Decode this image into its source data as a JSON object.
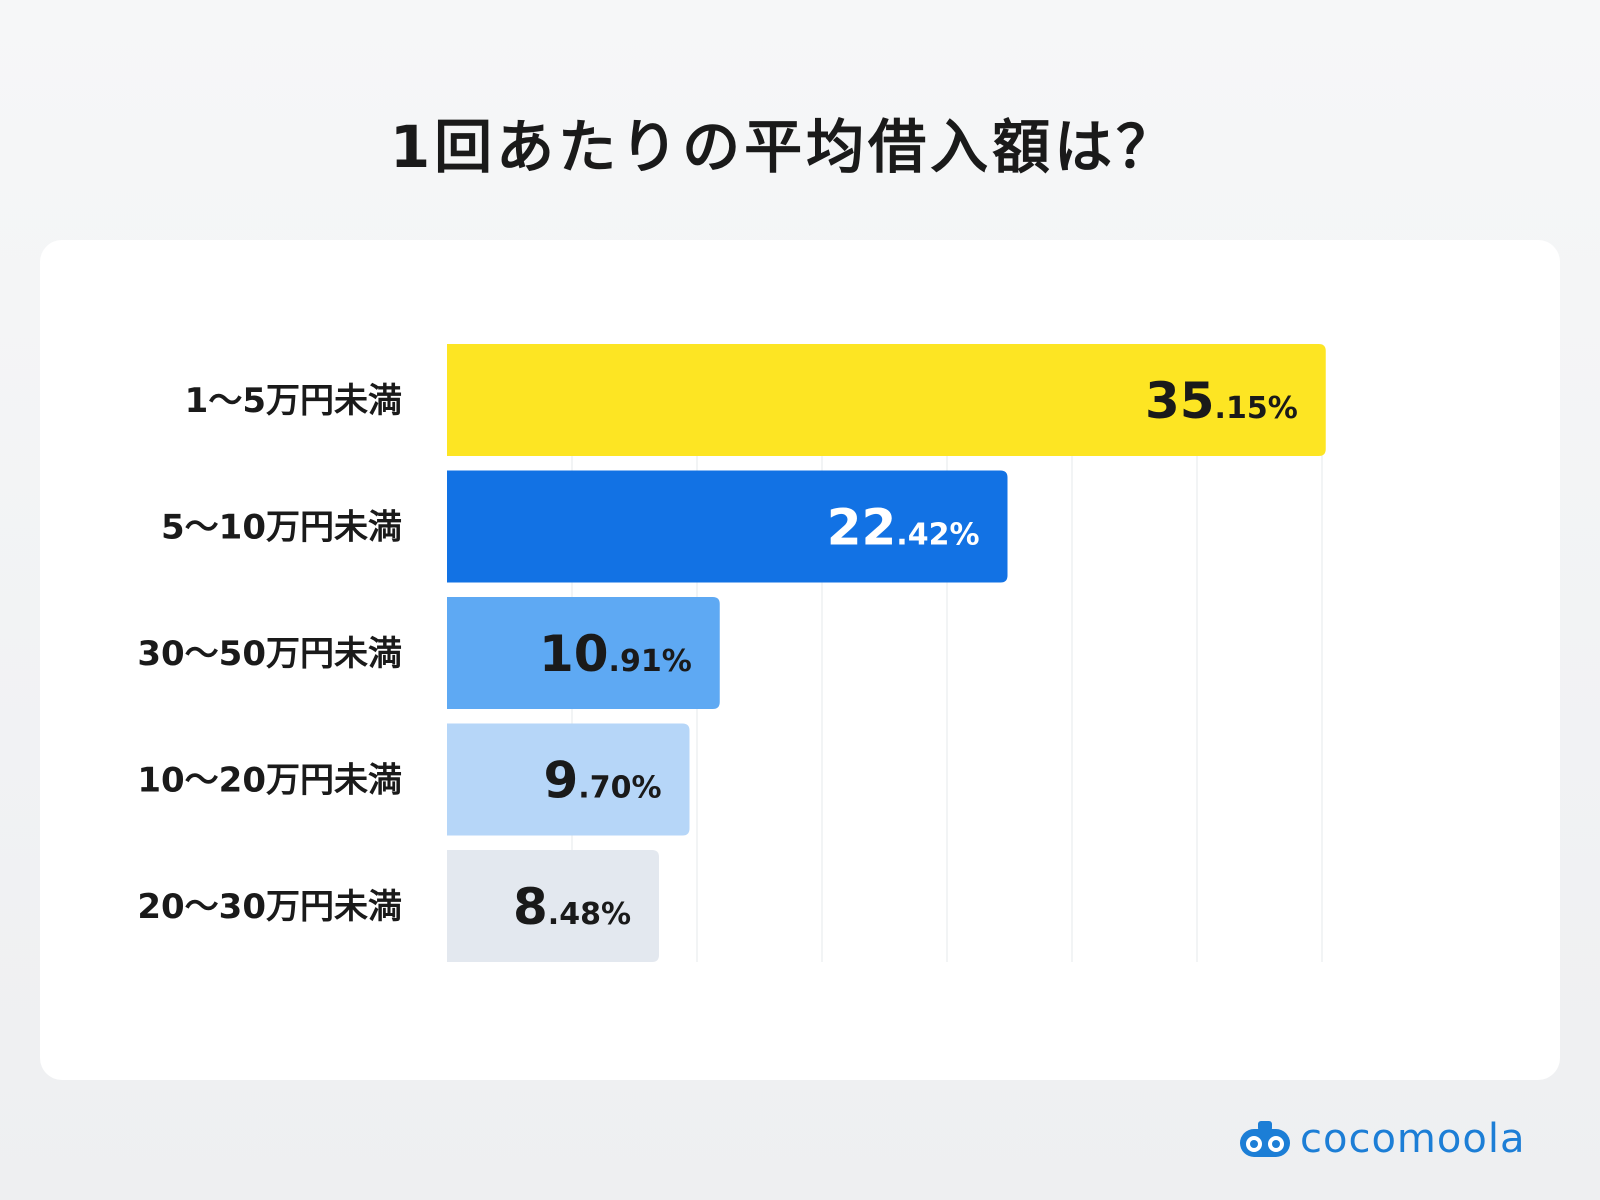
{
  "title": "1回あたりの平均借入額は？",
  "brand": {
    "name": "cocomoola",
    "color": "#1c7ed6",
    "icon": "binoculars-icon"
  },
  "chart_data": {
    "type": "bar",
    "orientation": "horizontal",
    "title": "1回あたりの平均借入額は？",
    "xlabel": "",
    "ylabel": "",
    "xlim": [
      0,
      42
    ],
    "grid": true,
    "unit": "%",
    "categories": [
      "1〜5万円未満",
      "5〜10万円未満",
      "30〜50万円未満",
      "10〜20万円未満",
      "20〜30万円未満"
    ],
    "values": [
      35.15,
      22.42,
      10.91,
      9.7,
      8.48
    ],
    "labels": [
      {
        "int": "35",
        "dec": ".15%"
      },
      {
        "int": "22",
        "dec": ".42%"
      },
      {
        "int": "10",
        "dec": ".91%"
      },
      {
        "int": "9",
        "dec": ".70%"
      },
      {
        "int": "8",
        "dec": ".48%"
      }
    ],
    "colors": [
      "#fde523",
      "#1272e4",
      "#5ea9f3",
      "#b6d6f8",
      "#e3e8ef"
    ],
    "label_colors": [
      "#1a1a1a",
      "#ffffff",
      "#1a1a1a",
      "#1a1a1a",
      "#1a1a1a"
    ]
  }
}
